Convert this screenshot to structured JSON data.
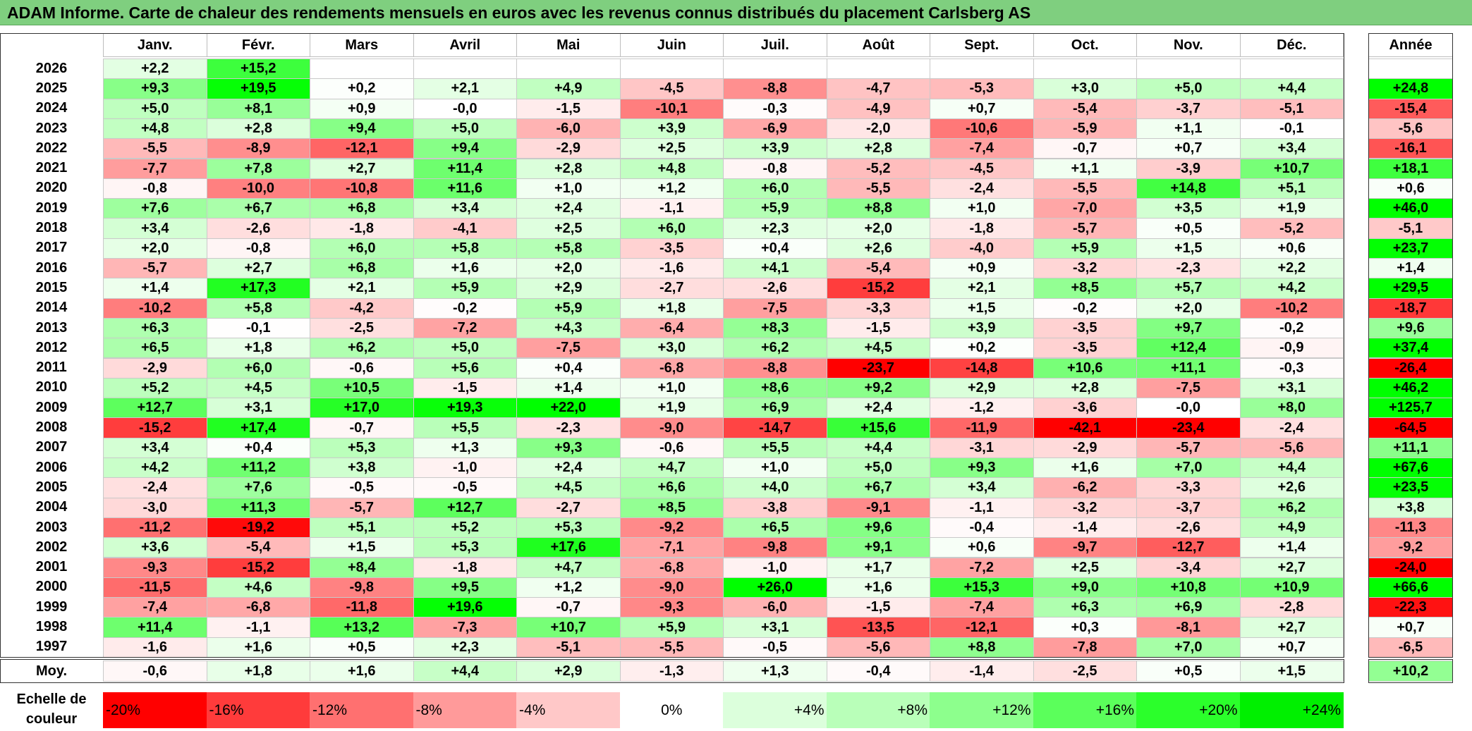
{
  "title": "ADAM Informe. Carte de chaleur des rendements mensuels en euros avec les revenus connus distribués du placement Carlsberg AS",
  "chart_data": {
    "type": "heatmap",
    "title": "ADAM Informe. Carte de chaleur des rendements mensuels en euros avec les revenus connus distribués du placement Carlsberg AS",
    "months": [
      "Janv.",
      "Févr.",
      "Mars",
      "Avril",
      "Mai",
      "Juin",
      "Juil.",
      "Août",
      "Sept.",
      "Oct.",
      "Nov.",
      "Déc."
    ],
    "year_header": "Année",
    "average_label": "Moy.",
    "rows": [
      {
        "year": "2026",
        "months": [
          "+2,2",
          "+15,2",
          "",
          "",
          "",
          "",
          "",
          "",
          "",
          "",
          "",
          ""
        ],
        "total": ""
      },
      {
        "year": "2025",
        "months": [
          "+9,3",
          "+19,5",
          "+0,2",
          "+2,1",
          "+4,9",
          "-4,5",
          "-8,8",
          "-4,7",
          "-5,3",
          "+3,0",
          "+5,0",
          "+4,4"
        ],
        "total": "+24,8"
      },
      {
        "year": "2024",
        "months": [
          "+5,0",
          "+8,1",
          "+0,9",
          "-0,0",
          "-1,5",
          "-10,1",
          "-0,3",
          "-4,9",
          "+0,7",
          "-5,4",
          "-3,7",
          "-5,1"
        ],
        "total": "-15,4"
      },
      {
        "year": "2023",
        "months": [
          "+4,8",
          "+2,8",
          "+9,4",
          "+5,0",
          "-6,0",
          "+3,9",
          "-6,9",
          "-2,0",
          "-10,6",
          "-5,9",
          "+1,1",
          "-0,1"
        ],
        "total": "-5,6"
      },
      {
        "year": "2022",
        "months": [
          "-5,5",
          "-8,9",
          "-12,1",
          "+9,4",
          "-2,9",
          "+2,5",
          "+3,9",
          "+2,8",
          "-7,4",
          "-0,7",
          "+0,7",
          "+3,4"
        ],
        "total": "-16,1"
      },
      {
        "year": "2021",
        "months": [
          "-7,7",
          "+7,8",
          "+2,7",
          "+11,4",
          "+2,8",
          "+4,8",
          "-0,8",
          "-5,2",
          "-4,5",
          "+1,1",
          "-3,9",
          "+10,7"
        ],
        "total": "+18,1"
      },
      {
        "year": "2020",
        "months": [
          "-0,8",
          "-10,0",
          "-10,8",
          "+11,6",
          "+1,0",
          "+1,2",
          "+6,0",
          "-5,5",
          "-2,4",
          "-5,5",
          "+14,8",
          "+5,1"
        ],
        "total": "+0,6"
      },
      {
        "year": "2019",
        "months": [
          "+7,6",
          "+6,7",
          "+6,8",
          "+3,4",
          "+2,4",
          "-1,1",
          "+5,9",
          "+8,8",
          "+1,0",
          "-7,0",
          "+3,5",
          "+1,9"
        ],
        "total": "+46,0"
      },
      {
        "year": "2018",
        "months": [
          "+3,4",
          "-2,6",
          "-1,8",
          "-4,1",
          "+2,5",
          "+6,0",
          "+2,3",
          "+2,0",
          "-1,8",
          "-5,7",
          "+0,5",
          "-5,2"
        ],
        "total": "-5,1"
      },
      {
        "year": "2017",
        "months": [
          "+2,0",
          "-0,8",
          "+6,0",
          "+5,8",
          "+5,8",
          "-3,5",
          "+0,4",
          "+2,6",
          "-4,0",
          "+5,9",
          "+1,5",
          "+0,6"
        ],
        "total": "+23,7"
      },
      {
        "year": "2016",
        "months": [
          "-5,7",
          "+2,7",
          "+6,8",
          "+1,6",
          "+2,0",
          "-1,6",
          "+4,1",
          "-5,4",
          "+0,9",
          "-3,2",
          "-2,3",
          "+2,2"
        ],
        "total": "+1,4"
      },
      {
        "year": "2015",
        "months": [
          "+1,4",
          "+17,3",
          "+2,1",
          "+5,9",
          "+2,9",
          "-2,7",
          "-2,6",
          "-15,2",
          "+2,1",
          "+8,5",
          "+5,7",
          "+4,2"
        ],
        "total": "+29,5"
      },
      {
        "year": "2014",
        "months": [
          "-10,2",
          "+5,8",
          "-4,2",
          "-0,2",
          "+5,9",
          "+1,8",
          "-7,5",
          "-3,3",
          "+1,5",
          "-0,2",
          "+2,0",
          "-10,2"
        ],
        "total": "-18,7"
      },
      {
        "year": "2013",
        "months": [
          "+6,3",
          "-0,1",
          "-2,5",
          "-7,2",
          "+4,3",
          "-6,4",
          "+8,3",
          "-1,5",
          "+3,9",
          "-3,5",
          "+9,7",
          "-0,2"
        ],
        "total": "+9,6"
      },
      {
        "year": "2012",
        "months": [
          "+6,5",
          "+1,8",
          "+6,2",
          "+5,0",
          "-7,5",
          "+3,0",
          "+6,2",
          "+4,5",
          "+0,2",
          "-3,5",
          "+12,4",
          "-0,9"
        ],
        "total": "+37,4"
      },
      {
        "year": "2011",
        "months": [
          "-2,9",
          "+6,0",
          "-0,6",
          "+5,6",
          "+0,4",
          "-6,8",
          "-8,8",
          "-23,7",
          "-14,8",
          "+10,6",
          "+11,1",
          "-0,3"
        ],
        "total": "-26,4"
      },
      {
        "year": "2010",
        "months": [
          "+5,2",
          "+4,5",
          "+10,5",
          "-1,5",
          "+1,4",
          "+1,0",
          "+8,6",
          "+9,2",
          "+2,9",
          "+2,8",
          "-7,5",
          "+3,1"
        ],
        "total": "+46,2"
      },
      {
        "year": "2009",
        "months": [
          "+12,7",
          "+3,1",
          "+17,0",
          "+19,3",
          "+22,0",
          "+1,9",
          "+6,9",
          "+2,4",
          "-1,2",
          "-3,6",
          "-0,0",
          "+8,0"
        ],
        "total": "+125,7"
      },
      {
        "year": "2008",
        "months": [
          "-15,2",
          "+17,4",
          "-0,7",
          "+5,5",
          "-2,3",
          "-9,0",
          "-14,7",
          "+15,6",
          "-11,9",
          "-42,1",
          "-23,4",
          "-2,4"
        ],
        "total": "-64,5"
      },
      {
        "year": "2007",
        "months": [
          "+3,4",
          "+0,4",
          "+5,3",
          "+1,3",
          "+9,3",
          "-0,6",
          "+5,5",
          "+4,4",
          "-3,1",
          "-2,9",
          "-5,7",
          "-5,6"
        ],
        "total": "+11,1"
      },
      {
        "year": "2006",
        "months": [
          "+4,2",
          "+11,2",
          "+3,8",
          "-1,0",
          "+2,4",
          "+4,7",
          "+1,0",
          "+5,0",
          "+9,3",
          "+1,6",
          "+7,0",
          "+4,4"
        ],
        "total": "+67,6"
      },
      {
        "year": "2005",
        "months": [
          "-2,4",
          "+7,6",
          "-0,5",
          "-0,5",
          "+4,5",
          "+6,6",
          "+4,0",
          "+6,7",
          "+3,4",
          "-6,2",
          "-3,3",
          "+2,6"
        ],
        "total": "+23,5"
      },
      {
        "year": "2004",
        "months": [
          "-3,0",
          "+11,3",
          "-5,7",
          "+12,7",
          "-2,7",
          "+8,5",
          "-3,8",
          "-9,1",
          "-1,1",
          "-3,2",
          "-3,7",
          "+6,2"
        ],
        "total": "+3,8"
      },
      {
        "year": "2003",
        "months": [
          "-11,2",
          "-19,2",
          "+5,1",
          "+5,2",
          "+5,3",
          "-9,2",
          "+6,5",
          "+9,6",
          "-0,4",
          "-1,4",
          "-2,6",
          "+4,9"
        ],
        "total": "-11,3"
      },
      {
        "year": "2002",
        "months": [
          "+3,6",
          "-5,4",
          "+1,5",
          "+5,3",
          "+17,6",
          "-7,1",
          "-9,8",
          "+9,1",
          "+0,6",
          "-9,7",
          "-12,7",
          "+1,4"
        ],
        "total": "-9,2"
      },
      {
        "year": "2001",
        "months": [
          "-9,3",
          "-15,2",
          "+8,4",
          "-1,8",
          "+4,7",
          "-6,8",
          "-1,0",
          "+1,7",
          "-7,2",
          "+2,5",
          "-3,4",
          "+2,7"
        ],
        "total": "-24,0"
      },
      {
        "year": "2000",
        "months": [
          "-11,5",
          "+4,6",
          "-9,8",
          "+9,5",
          "+1,2",
          "-9,0",
          "+26,0",
          "+1,6",
          "+15,3",
          "+9,0",
          "+10,8",
          "+10,9"
        ],
        "total": "+66,6"
      },
      {
        "year": "1999",
        "months": [
          "-7,4",
          "-6,8",
          "-11,8",
          "+19,6",
          "-0,7",
          "-9,3",
          "-6,0",
          "-1,5",
          "-7,4",
          "+6,3",
          "+6,9",
          "-2,8"
        ],
        "total": "-22,3"
      },
      {
        "year": "1998",
        "months": [
          "+11,4",
          "-1,1",
          "+13,2",
          "-7,3",
          "+10,7",
          "+5,9",
          "+3,1",
          "-13,5",
          "-12,1",
          "+0,3",
          "-8,1",
          "+2,7"
        ],
        "total": "+0,7"
      },
      {
        "year": "1997",
        "months": [
          "-1,6",
          "+1,6",
          "+0,5",
          "+2,3",
          "-5,1",
          "-5,5",
          "-0,5",
          "-5,6",
          "+8,8",
          "-7,8",
          "+7,0",
          "+0,7"
        ],
        "total": "-6,5"
      }
    ],
    "averages": {
      "months": [
        "-0,6",
        "+1,8",
        "+1,6",
        "+4,4",
        "+2,9",
        "-1,3",
        "+1,3",
        "-0,4",
        "-1,4",
        "-2,5",
        "+0,5",
        "+1,5"
      ],
      "total": "+10,2"
    },
    "color_scale": {
      "label": "Echelle de couleur",
      "steps": [
        "-20%",
        "-16%",
        "-12%",
        "-8%",
        "-4%",
        "0%",
        "+4%",
        "+8%",
        "+12%",
        "+16%",
        "+20%",
        "+24%"
      ],
      "step_colors": [
        "#ff0000",
        "#ff3b3b",
        "#ff7070",
        "#ff9a9a",
        "#ffc8c8",
        "#ffffff",
        "#dcffdc",
        "#b9ffb9",
        "#8dff8d",
        "#5bff5b",
        "#2bff2b",
        "#00f000"
      ],
      "negative_color": "#ff0000",
      "positive_color": "#00ff00",
      "neutral_color": "#ffffff"
    }
  }
}
